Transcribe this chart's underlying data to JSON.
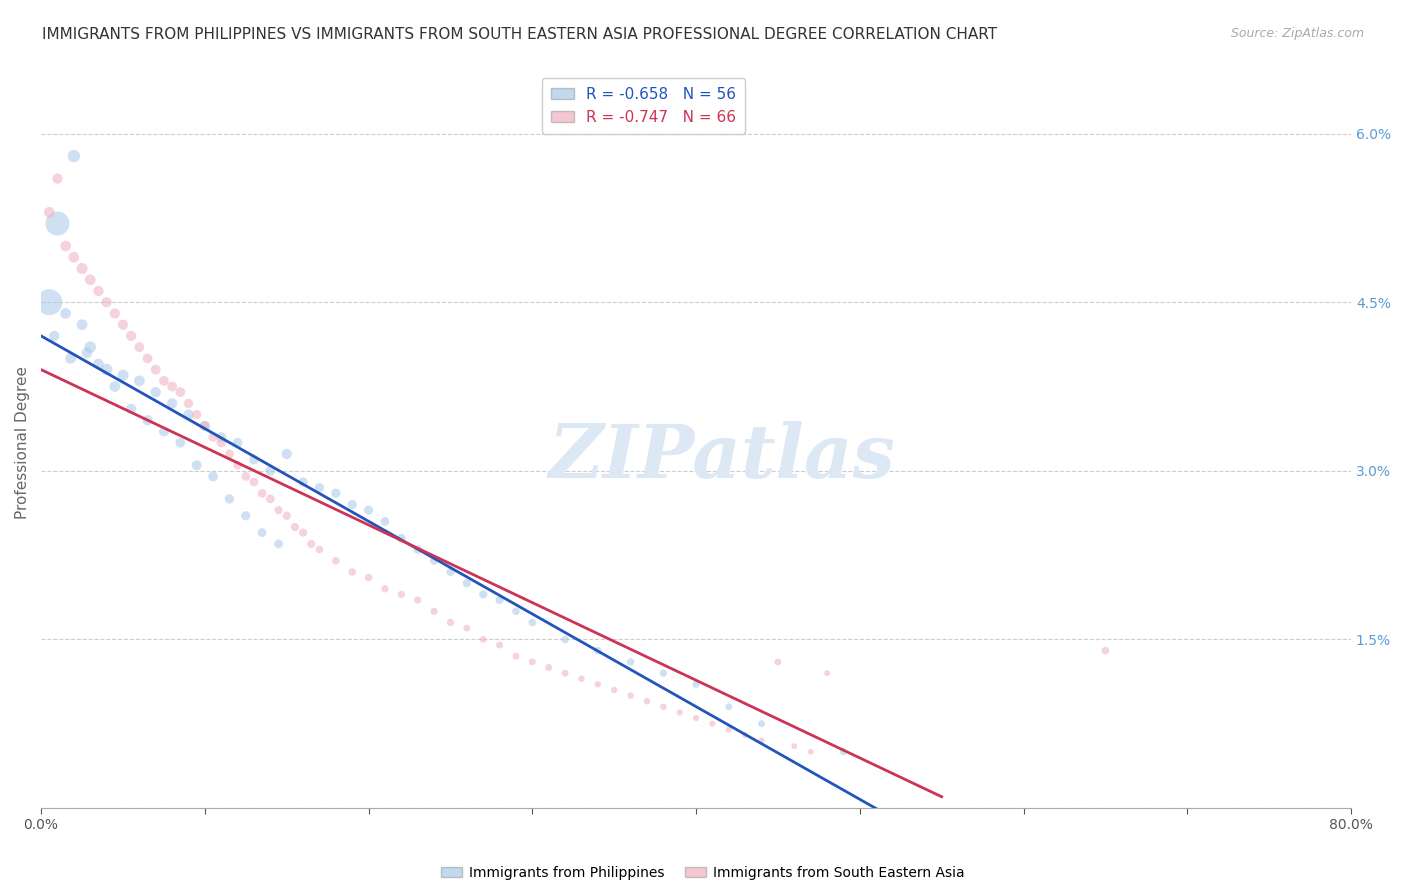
{
  "title": "IMMIGRANTS FROM PHILIPPINES VS IMMIGRANTS FROM SOUTH EASTERN ASIA PROFESSIONAL DEGREE CORRELATION CHART",
  "source": "Source: ZipAtlas.com",
  "ylabel": "Professional Degree",
  "xlim": [
    0,
    80
  ],
  "ylim": [
    0,
    6.5
  ],
  "yticks": [
    0,
    1.5,
    3.0,
    4.5,
    6.0
  ],
  "ytick_labels": [
    "",
    "1.5%",
    "3.0%",
    "4.5%",
    "6.0%"
  ],
  "xticks": [
    0,
    10,
    20,
    30,
    40,
    50,
    60,
    70,
    80
  ],
  "xtick_labels": [
    "0.0%",
    "",
    "",
    "",
    "",
    "",
    "",
    "",
    "80.0%"
  ],
  "blue_R": -0.658,
  "blue_N": 56,
  "pink_R": -0.747,
  "pink_N": 66,
  "blue_color": "#a8c8e8",
  "pink_color": "#f0b0c0",
  "blue_line_color": "#2255bb",
  "pink_line_color": "#cc3355",
  "watermark": "ZIPatlas",
  "watermark_color": "#dde8f5",
  "legend_label_blue": "Immigrants from Philippines",
  "legend_label_pink": "Immigrants from South Eastern Asia",
  "blue_x": [
    1.0,
    2.0,
    1.5,
    0.5,
    2.5,
    3.0,
    0.8,
    1.8,
    2.8,
    4.0,
    5.0,
    6.0,
    7.0,
    8.0,
    9.0,
    10.0,
    11.0,
    12.0,
    13.0,
    14.0,
    15.0,
    16.0,
    17.0,
    18.0,
    3.5,
    4.5,
    5.5,
    6.5,
    7.5,
    8.5,
    9.5,
    10.5,
    11.5,
    12.5,
    13.5,
    14.5,
    19.0,
    20.0,
    21.0,
    22.0,
    23.0,
    24.0,
    25.0,
    26.0,
    27.0,
    28.0,
    29.0,
    30.0,
    32.0,
    34.0,
    36.0,
    38.0,
    40.0,
    42.0,
    44.0,
    49.0
  ],
  "blue_y": [
    5.2,
    5.8,
    4.4,
    4.5,
    4.3,
    4.1,
    4.2,
    4.0,
    4.05,
    3.9,
    3.85,
    3.8,
    3.7,
    3.6,
    3.5,
    3.4,
    3.3,
    3.25,
    3.1,
    3.0,
    3.15,
    2.9,
    2.85,
    2.8,
    3.95,
    3.75,
    3.55,
    3.45,
    3.35,
    3.25,
    3.05,
    2.95,
    2.75,
    2.6,
    2.45,
    2.35,
    2.7,
    2.65,
    2.55,
    2.4,
    2.3,
    2.2,
    2.1,
    2.0,
    1.9,
    1.85,
    1.75,
    1.65,
    1.5,
    1.4,
    1.3,
    1.2,
    1.1,
    0.9,
    0.75,
    0.5
  ],
  "blue_s": [
    300,
    80,
    60,
    350,
    60,
    70,
    55,
    60,
    60,
    70,
    65,
    60,
    55,
    55,
    55,
    55,
    50,
    50,
    50,
    50,
    55,
    45,
    45,
    45,
    60,
    60,
    55,
    55,
    50,
    50,
    50,
    50,
    45,
    45,
    40,
    40,
    45,
    45,
    40,
    40,
    40,
    35,
    35,
    35,
    35,
    35,
    30,
    30,
    30,
    30,
    28,
    28,
    25,
    25,
    25,
    25
  ],
  "pink_x": [
    0.5,
    1.0,
    1.5,
    2.0,
    2.5,
    3.0,
    3.5,
    4.0,
    4.5,
    5.0,
    5.5,
    6.0,
    6.5,
    7.0,
    7.5,
    8.0,
    8.5,
    9.0,
    9.5,
    10.0,
    10.5,
    11.0,
    11.5,
    12.0,
    12.5,
    13.0,
    13.5,
    14.0,
    14.5,
    15.0,
    15.5,
    16.0,
    16.5,
    17.0,
    18.0,
    19.0,
    20.0,
    21.0,
    22.0,
    23.0,
    24.0,
    25.0,
    26.0,
    27.0,
    28.0,
    29.0,
    30.0,
    31.0,
    32.0,
    33.0,
    34.0,
    35.0,
    36.0,
    37.0,
    38.0,
    39.0,
    40.0,
    41.0,
    42.0,
    43.0,
    44.0,
    45.0,
    46.0,
    47.0,
    48.0,
    65.0
  ],
  "pink_y": [
    5.3,
    5.6,
    5.0,
    4.9,
    4.8,
    4.7,
    4.6,
    4.5,
    4.4,
    4.3,
    4.2,
    4.1,
    4.0,
    3.9,
    3.8,
    3.75,
    3.7,
    3.6,
    3.5,
    3.4,
    3.3,
    3.25,
    3.15,
    3.05,
    2.95,
    2.9,
    2.8,
    2.75,
    2.65,
    2.6,
    2.5,
    2.45,
    2.35,
    2.3,
    2.2,
    2.1,
    2.05,
    1.95,
    1.9,
    1.85,
    1.75,
    1.65,
    1.6,
    1.5,
    1.45,
    1.35,
    1.3,
    1.25,
    1.2,
    1.15,
    1.1,
    1.05,
    1.0,
    0.95,
    0.9,
    0.85,
    0.8,
    0.75,
    0.7,
    0.65,
    0.6,
    1.3,
    0.55,
    0.5,
    1.2,
    1.4
  ],
  "pink_s": [
    60,
    55,
    60,
    60,
    65,
    60,
    55,
    55,
    55,
    55,
    55,
    50,
    50,
    50,
    50,
    50,
    50,
    45,
    45,
    45,
    45,
    45,
    40,
    40,
    40,
    40,
    40,
    40,
    35,
    35,
    35,
    35,
    35,
    30,
    30,
    30,
    30,
    28,
    28,
    28,
    28,
    28,
    25,
    25,
    25,
    25,
    25,
    25,
    25,
    22,
    22,
    22,
    22,
    22,
    22,
    20,
    20,
    20,
    20,
    20,
    20,
    25,
    18,
    18,
    18,
    30
  ],
  "blue_trend_y_start": 4.2,
  "blue_trend_y_end": -0.5,
  "blue_trend_x_end": 57,
  "pink_trend_y_start": 3.9,
  "pink_trend_y_end": 0.1,
  "pink_trend_x_end": 55,
  "title_fontsize": 11,
  "axis_label_fontsize": 11,
  "tick_fontsize": 10,
  "legend_fontsize": 11,
  "source_fontsize": 9,
  "background_color": "#ffffff",
  "grid_color": "#cccccc",
  "right_tick_color": "#5b9bd5",
  "bottom_tick_color": "#444444"
}
